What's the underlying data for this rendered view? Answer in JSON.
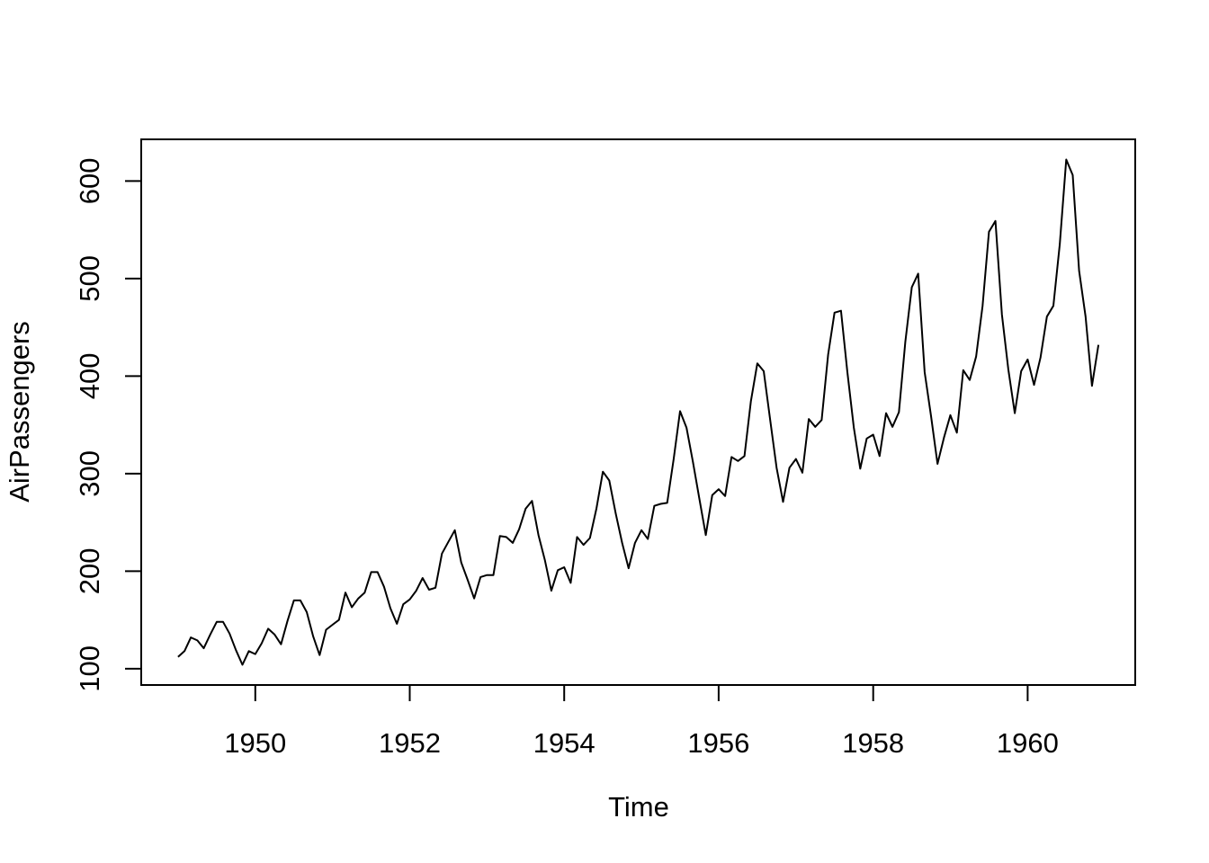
{
  "page": {
    "background": "#ffffff",
    "description": "R base graphics line plot of the AirPassengers monthly time series"
  },
  "chart_data": {
    "type": "line",
    "title": "",
    "xlabel": "Time",
    "ylabel": "AirPassengers",
    "legend": null,
    "grid": false,
    "frame_box": true,
    "line_color": "#000000",
    "background_color": "#ffffff",
    "x_ticks": [
      1950,
      1952,
      1954,
      1956,
      1958,
      1960
    ],
    "y_ticks": [
      100,
      200,
      300,
      400,
      500,
      600
    ],
    "xlim": [
      1948.5233,
      1961.3933
    ],
    "ylim": [
      83.28,
      642.72
    ],
    "x_start": 1949,
    "x_step": 0.0833333,
    "series_name": "AirPassengers",
    "values": [
      112,
      118,
      132,
      129,
      121,
      135,
      148,
      148,
      136,
      119,
      104,
      118,
      115,
      126,
      141,
      135,
      125,
      149,
      170,
      170,
      158,
      133,
      114,
      140,
      145,
      150,
      178,
      163,
      172,
      178,
      199,
      199,
      184,
      162,
      146,
      166,
      171,
      180,
      193,
      181,
      183,
      218,
      230,
      242,
      209,
      191,
      172,
      194,
      196,
      196,
      236,
      235,
      229,
      243,
      264,
      272,
      237,
      211,
      180,
      201,
      204,
      188,
      235,
      227,
      234,
      264,
      302,
      293,
      259,
      229,
      203,
      229,
      242,
      233,
      267,
      269,
      270,
      315,
      364,
      347,
      312,
      274,
      237,
      278,
      284,
      277,
      317,
      313,
      318,
      374,
      413,
      405,
      355,
      306,
      271,
      306,
      315,
      301,
      356,
      348,
      355,
      422,
      465,
      467,
      404,
      347,
      305,
      336,
      340,
      318,
      362,
      348,
      363,
      435,
      491,
      505,
      404,
      359,
      310,
      337,
      360,
      342,
      406,
      396,
      420,
      472,
      548,
      559,
      463,
      407,
      362,
      405,
      417,
      391,
      419,
      461,
      472,
      535,
      622,
      606,
      508,
      461,
      390,
      432
    ]
  }
}
